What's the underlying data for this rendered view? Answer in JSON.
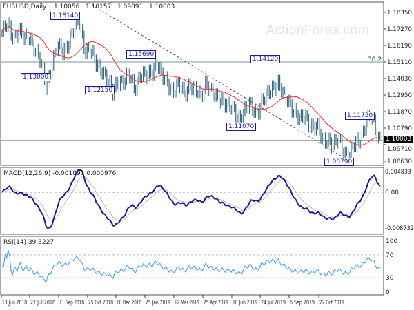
{
  "chart_data": {
    "type": "line",
    "title": "EURUSD,Daily",
    "ohlc_readout": [
      "1.10056",
      "1.10157",
      "1.09891",
      "1.10003"
    ],
    "watermark": "ActionForex.com",
    "close": [
      1.17,
      1.175,
      1.168,
      1.172,
      1.165,
      1.168,
      1.16,
      1.15,
      1.135,
      1.15,
      1.16,
      1.158,
      1.165,
      1.172,
      1.178,
      1.16,
      1.158,
      1.15,
      1.148,
      1.14,
      1.13,
      1.14,
      1.138,
      1.142,
      1.135,
      1.143,
      1.14,
      1.145,
      1.152,
      1.14,
      1.138,
      1.133,
      1.135,
      1.13,
      1.138,
      1.132,
      1.128,
      1.14,
      1.13,
      1.126,
      1.128,
      1.122,
      1.118,
      1.115,
      1.12,
      1.122,
      1.118,
      1.125,
      1.128,
      1.135,
      1.138,
      1.128,
      1.125,
      1.12,
      1.112,
      1.115,
      1.11,
      1.108,
      1.1,
      1.102,
      1.095,
      1.1,
      1.093,
      1.09,
      1.098,
      1.102,
      1.112,
      1.114,
      1.104,
      1.1
    ],
    "price_axis": {
      "min": 1.0863,
      "max": 1.1835,
      "ticks": [
        "1.18350",
        "1.17270",
        "1.16190",
        "1.15110",
        "1.14030",
        "1.12950",
        "1.11870",
        "1.10790",
        "1.09710",
        "1.08630"
      ]
    },
    "current_price": "1.10003",
    "fib_level": {
      "label": "38.2",
      "price": 1.1511
    },
    "annotations": [
      "1.18140",
      "1.15690",
      "1.13000",
      "1.12150",
      "1.14120",
      "1.11070",
      "1.11750",
      "1.08790"
    ],
    "x_labels": [
      "13 Jun 2018",
      "27 Jul 2018",
      "11 Sep 2018",
      "25 Oct 2018",
      "10 Dec 2018",
      "25 Jan 2019",
      "12 Mar 2019",
      "25 Apr 2019",
      "10 Jun 2019",
      "24 Jul 2019",
      "6 Sep 2019",
      "22 Oct 2019"
    ],
    "macd": {
      "title": "MACD(12,26,9) -0.001095 0.000976",
      "max": 0.004833,
      "min": -0.008732,
      "ticks": [
        "0.004833",
        "0.00",
        "-0.008732"
      ]
    },
    "rsi": {
      "title": "RSI(14) 39.3227",
      "ticks": [
        "100",
        "70",
        "30",
        "0"
      ],
      "levels": [
        70,
        30
      ]
    },
    "colors": {
      "bars": "#3a6b86",
      "sma": "#ff2020",
      "macd": "#1a1a9a",
      "signal": "#b8b8b8",
      "rsi": "#3399ff"
    }
  }
}
